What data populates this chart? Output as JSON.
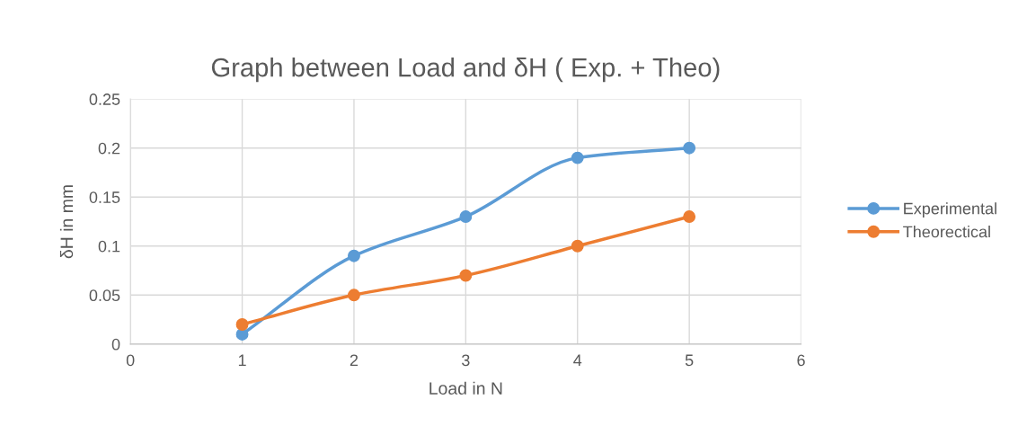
{
  "chart_data": {
    "type": "line",
    "title": "Graph between Load and δH ( Exp. + Theo)",
    "xlabel": "Load in N",
    "ylabel": "δH in mm",
    "x": [
      1,
      2,
      3,
      4,
      5
    ],
    "series": [
      {
        "name": "Experimental",
        "color": "#5b9bd5",
        "values": [
          0.01,
          0.09,
          0.13,
          0.19,
          0.2
        ]
      },
      {
        "name": "Theorectical",
        "color": "#ed7d31",
        "values": [
          0.02,
          0.05,
          0.07,
          0.1,
          0.13
        ]
      }
    ],
    "xlim": [
      0,
      6
    ],
    "xticks": [
      0,
      1,
      2,
      3,
      4,
      5,
      6
    ],
    "ylim": [
      0,
      0.25
    ],
    "yticks": [
      0,
      0.05,
      0.1,
      0.15,
      0.2,
      0.25
    ],
    "grid": true,
    "legend": "right",
    "marker": "circle",
    "line_style": "solid"
  }
}
